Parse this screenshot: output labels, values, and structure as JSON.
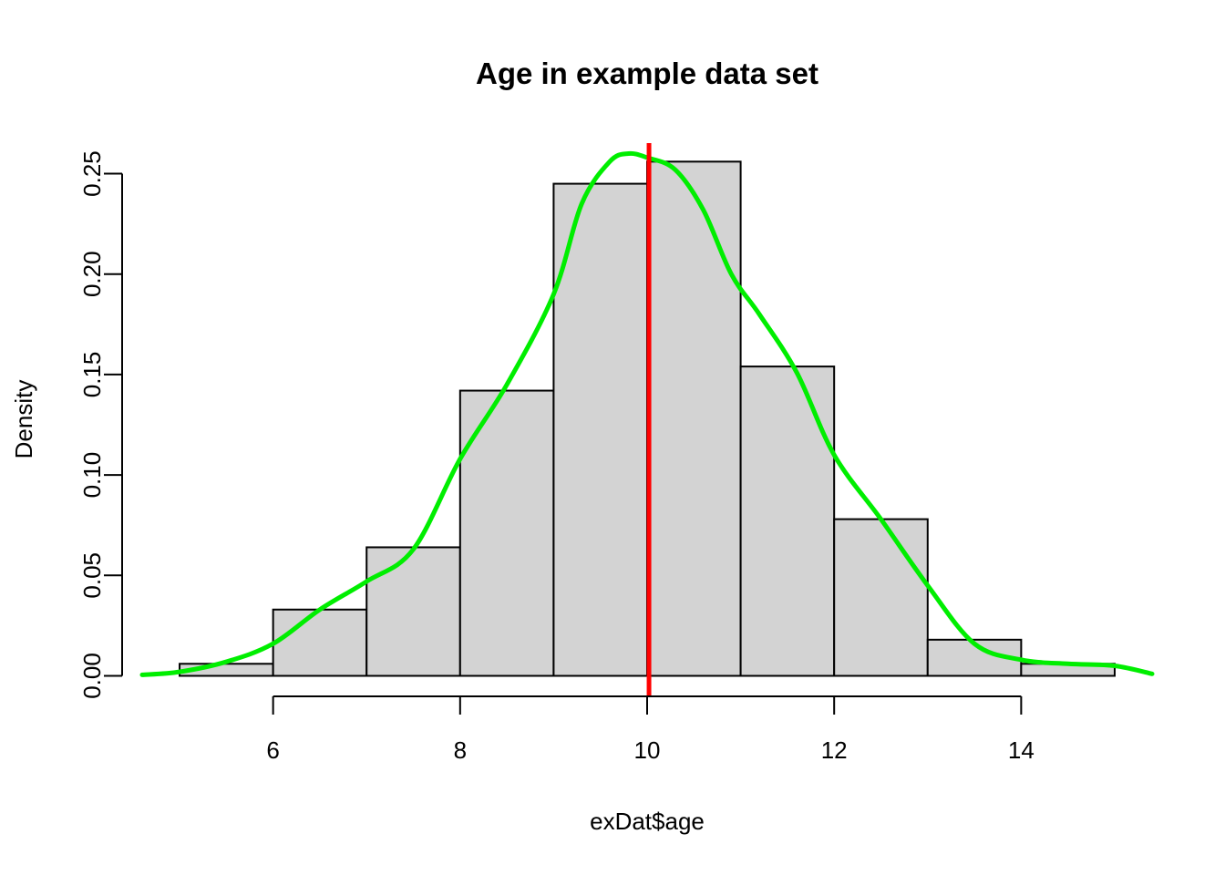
{
  "chart_data": {
    "type": "bar",
    "title": "Age in example data set",
    "xlabel": "exDat$age",
    "ylabel": "Density",
    "xlim": [
      4.6,
      15.4
    ],
    "ylim": [
      0,
      0.265
    ],
    "x_ticks": [
      6,
      8,
      10,
      12,
      14
    ],
    "x_tick_labels": [
      "6",
      "8",
      "10",
      "12",
      "14"
    ],
    "x_axis_range": [
      6,
      14
    ],
    "y_ticks": [
      0,
      0.05,
      0.1,
      0.15,
      0.2,
      0.25
    ],
    "y_tick_labels": [
      "0.00",
      "0.05",
      "0.10",
      "0.15",
      "0.20",
      "0.25"
    ],
    "grid": false,
    "bins": [
      {
        "start": 5,
        "end": 6,
        "density": 0.006
      },
      {
        "start": 6,
        "end": 7,
        "density": 0.033
      },
      {
        "start": 7,
        "end": 8,
        "density": 0.064
      },
      {
        "start": 8,
        "end": 9,
        "density": 0.142
      },
      {
        "start": 9,
        "end": 10,
        "density": 0.245
      },
      {
        "start": 10,
        "end": 11,
        "density": 0.256
      },
      {
        "start": 11,
        "end": 12,
        "density": 0.154
      },
      {
        "start": 12,
        "end": 13,
        "density": 0.078
      },
      {
        "start": 13,
        "end": 14,
        "density": 0.018
      },
      {
        "start": 14,
        "end": 15,
        "density": 0.006
      }
    ],
    "density_curve": {
      "x": [
        4.6,
        5.0,
        5.5,
        6.0,
        6.5,
        7.0,
        7.5,
        8.0,
        8.5,
        9.0,
        9.3,
        9.6,
        9.8,
        10.0,
        10.3,
        10.6,
        10.9,
        11.2,
        11.6,
        12.0,
        12.5,
        13.0,
        13.5,
        14.0,
        14.5,
        15.0,
        15.4
      ],
      "y": [
        0.0005,
        0.002,
        0.007,
        0.016,
        0.033,
        0.047,
        0.063,
        0.108,
        0.145,
        0.19,
        0.235,
        0.256,
        0.26,
        0.258,
        0.252,
        0.232,
        0.2,
        0.18,
        0.151,
        0.11,
        0.078,
        0.045,
        0.016,
        0.008,
        0.006,
        0.005,
        0.001
      ]
    },
    "vline": {
      "x": 10.02
    },
    "colors": {
      "bar_fill": "#d3d3d3",
      "bar_stroke": "#000000",
      "density": "#00ee00",
      "vline": "#ff0000"
    }
  }
}
